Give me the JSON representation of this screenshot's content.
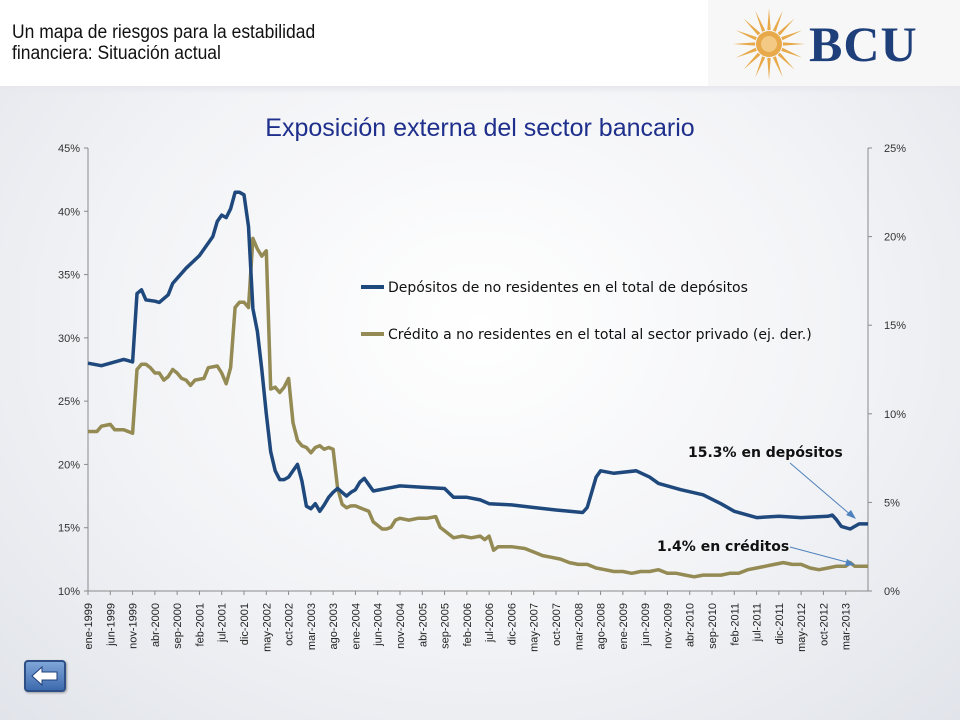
{
  "header": {
    "title": "Un mapa de riesgos para la estabilidad financiera: Situación actual",
    "logo_text": "BCU"
  },
  "navigation": {
    "back_icon": "back-arrow-icon"
  },
  "colors": {
    "deposits": "#1f497d",
    "credit": "#948a54",
    "title": "#1f2f8c",
    "logo": "#1e3f7a",
    "sun": "#e7a94a"
  },
  "chart_data": {
    "type": "line",
    "title": "Exposición externa del sector bancario",
    "grid": false,
    "legend_position": "center-right",
    "y_left": {
      "ticks": [
        "10%",
        "15%",
        "20%",
        "25%",
        "30%",
        "35%",
        "40%",
        "45%"
      ],
      "range": [
        10,
        45
      ]
    },
    "y_right": {
      "ticks": [
        "0%",
        "5%",
        "10%",
        "15%",
        "20%",
        "25%"
      ],
      "range": [
        0,
        25
      ]
    },
    "x_labels": [
      "ene-1999",
      "jun-1999",
      "nov-1999",
      "abr-2000",
      "sep-2000",
      "feb-2001",
      "jul-2001",
      "dic-2001",
      "may-2002",
      "oct-2002",
      "mar-2003",
      "ago-2003",
      "ene-2004",
      "jun-2004",
      "nov-2004",
      "abr-2005",
      "sep-2005",
      "feb-2006",
      "jul-2006",
      "dic-2006",
      "may-2007",
      "oct-2007",
      "mar-2008",
      "ago-2008",
      "ene-2009",
      "jun-2009",
      "nov-2009",
      "abr-2010",
      "sep-2010",
      "feb-2011",
      "jul-2011",
      "dic-2011",
      "may-2012",
      "oct-2012",
      "mar-2013"
    ],
    "series": [
      {
        "name": "Depósitos de no residentes en el total de depósitos",
        "axis": "left",
        "color": "#1f497d",
        "points": [
          [
            0,
            28
          ],
          [
            3,
            27.8
          ],
          [
            5,
            28
          ],
          [
            8,
            28.3
          ],
          [
            10,
            28.1
          ],
          [
            11,
            33.5
          ],
          [
            12,
            33.8
          ],
          [
            13,
            33
          ],
          [
            15,
            32.9
          ],
          [
            16,
            32.8
          ],
          [
            18,
            33.4
          ],
          [
            19,
            34.3
          ],
          [
            22,
            35.5
          ],
          [
            25,
            36.5
          ],
          [
            28,
            38
          ],
          [
            29,
            39.2
          ],
          [
            30,
            39.7
          ],
          [
            31,
            39.5
          ],
          [
            32,
            40.2
          ],
          [
            33,
            41.5
          ],
          [
            34,
            41.5
          ],
          [
            35,
            41.3
          ],
          [
            36,
            38.8
          ],
          [
            37,
            32.3
          ],
          [
            38,
            30.5
          ],
          [
            39,
            27.5
          ],
          [
            40,
            24
          ],
          [
            41,
            21
          ],
          [
            42,
            19.5
          ],
          [
            43,
            18.8
          ],
          [
            44,
            18.8
          ],
          [
            45,
            19
          ],
          [
            46,
            19.5
          ],
          [
            47,
            20
          ],
          [
            48,
            18.7
          ],
          [
            49,
            16.7
          ],
          [
            50,
            16.5
          ],
          [
            51,
            16.9
          ],
          [
            52,
            16.3
          ],
          [
            53,
            16.8
          ],
          [
            54,
            17.4
          ],
          [
            55,
            17.8
          ],
          [
            56,
            18.1
          ],
          [
            57,
            17.8
          ],
          [
            58,
            17.5
          ],
          [
            59,
            17.8
          ],
          [
            60,
            18
          ],
          [
            61,
            18.6
          ],
          [
            62,
            18.9
          ],
          [
            63,
            18.4
          ],
          [
            64,
            17.9
          ],
          [
            70,
            18.3
          ],
          [
            75,
            18.2
          ],
          [
            80,
            18.1
          ],
          [
            82,
            17.4
          ],
          [
            85,
            17.4
          ],
          [
            88,
            17.2
          ],
          [
            90,
            16.9
          ],
          [
            95,
            16.8
          ],
          [
            100,
            16.6
          ],
          [
            105,
            16.4
          ],
          [
            108,
            16.3
          ],
          [
            111,
            16.2
          ],
          [
            112,
            16.6
          ],
          [
            113,
            17.8
          ],
          [
            114,
            19
          ],
          [
            115,
            19.5
          ],
          [
            118,
            19.3
          ],
          [
            123,
            19.5
          ],
          [
            126,
            19
          ],
          [
            128,
            18.5
          ],
          [
            133,
            18
          ],
          [
            138,
            17.6
          ],
          [
            142,
            16.9
          ],
          [
            145,
            16.3
          ],
          [
            150,
            15.8
          ],
          [
            155,
            15.9
          ],
          [
            160,
            15.8
          ],
          [
            166,
            15.9
          ],
          [
            167,
            16
          ],
          [
            168,
            15.6
          ],
          [
            169,
            15.1
          ],
          [
            171,
            14.9
          ],
          [
            173,
            15.3
          ],
          [
            175,
            15.3
          ]
        ]
      },
      {
        "name": "Crédito a no residentes en el total al sector privado (ej. der.)",
        "axis": "right",
        "color": "#948a54",
        "points": [
          [
            0,
            9
          ],
          [
            2,
            9
          ],
          [
            3,
            9.3
          ],
          [
            5,
            9.4
          ],
          [
            6,
            9.1
          ],
          [
            8,
            9.1
          ],
          [
            10,
            8.9
          ],
          [
            11,
            12.5
          ],
          [
            12,
            12.8
          ],
          [
            13,
            12.8
          ],
          [
            14,
            12.6
          ],
          [
            15,
            12.3
          ],
          [
            16,
            12.3
          ],
          [
            17,
            11.9
          ],
          [
            18,
            12.1
          ],
          [
            19,
            12.5
          ],
          [
            20,
            12.3
          ],
          [
            21,
            12
          ],
          [
            22,
            11.9
          ],
          [
            23,
            11.6
          ],
          [
            24,
            11.9
          ],
          [
            26,
            12
          ],
          [
            27,
            12.6
          ],
          [
            29,
            12.7
          ],
          [
            30,
            12.3
          ],
          [
            31,
            11.7
          ],
          [
            32,
            12.6
          ],
          [
            33,
            16
          ],
          [
            34,
            16.3
          ],
          [
            35,
            16.3
          ],
          [
            36,
            16
          ],
          [
            37,
            19.9
          ],
          [
            38,
            19.3
          ],
          [
            39,
            18.9
          ],
          [
            40,
            19.2
          ],
          [
            41,
            11.4
          ],
          [
            42,
            11.5
          ],
          [
            43,
            11.2
          ],
          [
            44,
            11.5
          ],
          [
            45,
            12
          ],
          [
            46,
            9.5
          ],
          [
            47,
            8.5
          ],
          [
            48,
            8.2
          ],
          [
            49,
            8.1
          ],
          [
            50,
            7.8
          ],
          [
            51,
            8.1
          ],
          [
            52,
            8.2
          ],
          [
            53,
            8
          ],
          [
            54,
            8.1
          ],
          [
            55,
            8
          ],
          [
            56,
            5.8
          ],
          [
            57,
            4.9
          ],
          [
            58,
            4.7
          ],
          [
            59,
            4.8
          ],
          [
            60,
            4.8
          ],
          [
            61,
            4.7
          ],
          [
            62,
            4.6
          ],
          [
            63,
            4.5
          ],
          [
            64,
            3.9
          ],
          [
            65,
            3.7
          ],
          [
            66,
            3.5
          ],
          [
            67,
            3.5
          ],
          [
            68,
            3.6
          ],
          [
            69,
            4
          ],
          [
            70,
            4.1
          ],
          [
            72,
            4.0
          ],
          [
            74,
            4.1
          ],
          [
            76,
            4.1
          ],
          [
            78,
            4.2
          ],
          [
            79,
            3.6
          ],
          [
            80,
            3.4
          ],
          [
            82,
            3
          ],
          [
            84,
            3.1
          ],
          [
            86,
            3.0
          ],
          [
            88,
            3.1
          ],
          [
            89,
            2.9
          ],
          [
            90,
            3.1
          ],
          [
            91,
            2.3
          ],
          [
            92,
            2.5
          ],
          [
            95,
            2.5
          ],
          [
            98,
            2.4
          ],
          [
            100,
            2.2
          ],
          [
            102,
            2.0
          ],
          [
            104,
            1.9
          ],
          [
            106,
            1.8
          ],
          [
            108,
            1.6
          ],
          [
            110,
            1.5
          ],
          [
            112,
            1.5
          ],
          [
            114,
            1.3
          ],
          [
            116,
            1.2
          ],
          [
            118,
            1.1
          ],
          [
            120,
            1.1
          ],
          [
            122,
            1.0
          ],
          [
            124,
            1.1
          ],
          [
            126,
            1.1
          ],
          [
            128,
            1.2
          ],
          [
            130,
            1.0
          ],
          [
            132,
            1.0
          ],
          [
            134,
            0.9
          ],
          [
            136,
            0.8
          ],
          [
            138,
            0.9
          ],
          [
            140,
            0.9
          ],
          [
            142,
            0.9
          ],
          [
            144,
            1.0
          ],
          [
            146,
            1.0
          ],
          [
            148,
            1.2
          ],
          [
            150,
            1.3
          ],
          [
            152,
            1.4
          ],
          [
            154,
            1.5
          ],
          [
            156,
            1.6
          ],
          [
            158,
            1.5
          ],
          [
            160,
            1.5
          ],
          [
            162,
            1.3
          ],
          [
            164,
            1.2
          ],
          [
            166,
            1.3
          ],
          [
            168,
            1.4
          ],
          [
            170,
            1.4
          ],
          [
            171,
            1.6
          ],
          [
            172,
            1.4
          ],
          [
            173,
            1.4
          ],
          [
            175,
            1.4
          ]
        ]
      }
    ],
    "annotations": [
      {
        "text": "15.3% en depósitos"
      },
      {
        "text": "1.4% en créditos"
      }
    ]
  }
}
